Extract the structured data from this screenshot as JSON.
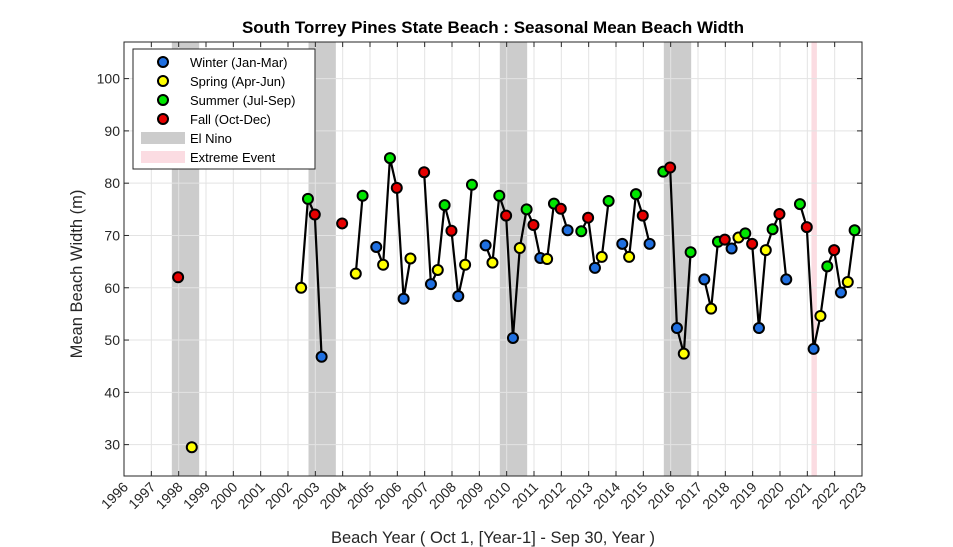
{
  "chart_data": {
    "type": "line",
    "title": "South Torrey Pines State Beach : Seasonal Mean Beach Width",
    "xlabel": "Beach Year ( Oct 1, [Year-1] - Sep 30, Year )",
    "ylabel": "Mean Beach Width (m)",
    "xlim": [
      1996,
      2023
    ],
    "ylim": [
      24,
      107
    ],
    "x_ticks": [
      "1996",
      "1997",
      "1998",
      "1999",
      "2000",
      "2001",
      "2002",
      "2003",
      "2004",
      "2005",
      "2006",
      "2007",
      "2008",
      "2009",
      "2010",
      "2011",
      "2012",
      "2013",
      "2014",
      "2015",
      "2016",
      "2017",
      "2018",
      "2019",
      "2020",
      "2021",
      "2022",
      "2023"
    ],
    "y_ticks": [
      "30",
      "40",
      "50",
      "60",
      "70",
      "80",
      "90",
      "100"
    ],
    "grid": true,
    "legend_position": "top-left",
    "season_colors": {
      "winter": "#1f6fe0",
      "spring": "#ffff00",
      "summer": "#00e600",
      "fall": "#e60000"
    },
    "legend": [
      {
        "key": "winter",
        "label": "Winter (Jan-Mar)",
        "kind": "marker"
      },
      {
        "key": "spring",
        "label": "Spring (Apr-Jun)",
        "kind": "marker"
      },
      {
        "key": "summer",
        "label": "Summer (Jul-Sep)",
        "kind": "marker"
      },
      {
        "key": "fall",
        "label": "Fall (Oct-Dec)",
        "kind": "marker"
      },
      {
        "key": "elnino",
        "label": "El Nino",
        "kind": "band"
      },
      {
        "key": "extreme",
        "label": "Extreme Event",
        "kind": "band"
      }
    ],
    "band_colors": {
      "elnino": "#cccccc",
      "extreme": "#fbdce2"
    },
    "shaded_periods": [
      {
        "type": "elnino",
        "start": 1997.75,
        "end": 1998.75
      },
      {
        "type": "elnino",
        "start": 2002.75,
        "end": 2003.75
      },
      {
        "type": "elnino",
        "start": 2009.75,
        "end": 2010.75
      },
      {
        "type": "elnino",
        "start": 2015.75,
        "end": 2016.75
      },
      {
        "type": "extreme",
        "start": 2021.15,
        "end": 2021.35
      }
    ],
    "segments": [
      [
        {
          "x": 1997.98,
          "y": 62.0,
          "season": "fall"
        }
      ],
      [
        {
          "x": 1998.48,
          "y": 29.5,
          "season": "spring"
        }
      ],
      [
        {
          "x": 2002.48,
          "y": 60.0,
          "season": "spring"
        },
        {
          "x": 2002.73,
          "y": 77.0,
          "season": "summer"
        },
        {
          "x": 2002.98,
          "y": 74.0,
          "season": "fall"
        },
        {
          "x": 2003.23,
          "y": 46.8,
          "season": "winter"
        }
      ],
      [
        {
          "x": 2003.98,
          "y": 72.3,
          "season": "fall"
        }
      ],
      [
        {
          "x": 2004.48,
          "y": 62.7,
          "season": "spring"
        },
        {
          "x": 2004.73,
          "y": 77.6,
          "season": "summer"
        }
      ],
      [
        {
          "x": 2005.23,
          "y": 67.8,
          "season": "winter"
        },
        {
          "x": 2005.48,
          "y": 64.4,
          "season": "spring"
        },
        {
          "x": 2005.73,
          "y": 84.8,
          "season": "summer"
        },
        {
          "x": 2005.98,
          "y": 79.1,
          "season": "fall"
        },
        {
          "x": 2006.23,
          "y": 57.9,
          "season": "winter"
        },
        {
          "x": 2006.48,
          "y": 65.6,
          "season": "spring"
        }
      ],
      [
        {
          "x": 2006.98,
          "y": 82.1,
          "season": "fall"
        },
        {
          "x": 2007.23,
          "y": 60.7,
          "season": "winter"
        },
        {
          "x": 2007.48,
          "y": 63.4,
          "season": "spring"
        },
        {
          "x": 2007.73,
          "y": 75.8,
          "season": "summer"
        },
        {
          "x": 2007.98,
          "y": 70.9,
          "season": "fall"
        },
        {
          "x": 2008.23,
          "y": 58.4,
          "season": "winter"
        },
        {
          "x": 2008.48,
          "y": 64.4,
          "season": "spring"
        },
        {
          "x": 2008.73,
          "y": 79.7,
          "season": "summer"
        }
      ],
      [
        {
          "x": 2009.23,
          "y": 68.1,
          "season": "winter"
        },
        {
          "x": 2009.48,
          "y": 64.8,
          "season": "spring"
        },
        {
          "x": 2009.73,
          "y": 77.6,
          "season": "summer"
        },
        {
          "x": 2009.98,
          "y": 73.8,
          "season": "fall"
        },
        {
          "x": 2010.23,
          "y": 50.4,
          "season": "winter"
        },
        {
          "x": 2010.48,
          "y": 67.6,
          "season": "spring"
        },
        {
          "x": 2010.73,
          "y": 75.0,
          "season": "summer"
        },
        {
          "x": 2010.98,
          "y": 72.0,
          "season": "fall"
        },
        {
          "x": 2011.23,
          "y": 65.7,
          "season": "winter"
        },
        {
          "x": 2011.48,
          "y": 65.5,
          "season": "spring"
        },
        {
          "x": 2011.73,
          "y": 76.1,
          "season": "summer"
        },
        {
          "x": 2011.98,
          "y": 75.1,
          "season": "fall"
        },
        {
          "x": 2012.23,
          "y": 71.0,
          "season": "winter"
        }
      ],
      [
        {
          "x": 2012.73,
          "y": 70.8,
          "season": "summer"
        },
        {
          "x": 2012.98,
          "y": 73.4,
          "season": "fall"
        },
        {
          "x": 2013.23,
          "y": 63.8,
          "season": "winter"
        },
        {
          "x": 2013.48,
          "y": 65.9,
          "season": "spring"
        },
        {
          "x": 2013.73,
          "y": 76.6,
          "season": "summer"
        }
      ],
      [
        {
          "x": 2014.23,
          "y": 68.4,
          "season": "winter"
        },
        {
          "x": 2014.48,
          "y": 65.9,
          "season": "spring"
        },
        {
          "x": 2014.73,
          "y": 77.9,
          "season": "summer"
        },
        {
          "x": 2014.98,
          "y": 73.8,
          "season": "fall"
        },
        {
          "x": 2015.23,
          "y": 68.4,
          "season": "winter"
        }
      ],
      [
        {
          "x": 2015.73,
          "y": 82.2,
          "season": "summer"
        },
        {
          "x": 2015.98,
          "y": 83.0,
          "season": "fall"
        },
        {
          "x": 2016.23,
          "y": 52.3,
          "season": "winter"
        },
        {
          "x": 2016.48,
          "y": 47.4,
          "season": "spring"
        },
        {
          "x": 2016.73,
          "y": 66.8,
          "season": "summer"
        }
      ],
      [
        {
          "x": 2017.23,
          "y": 61.6,
          "season": "winter"
        },
        {
          "x": 2017.48,
          "y": 56.0,
          "season": "spring"
        },
        {
          "x": 2017.73,
          "y": 68.8,
          "season": "summer"
        },
        {
          "x": 2017.98,
          "y": 69.2,
          "season": "fall"
        },
        {
          "x": 2018.23,
          "y": 67.5,
          "season": "winter"
        },
        {
          "x": 2018.48,
          "y": 69.6,
          "season": "spring"
        },
        {
          "x": 2018.73,
          "y": 70.4,
          "season": "summer"
        },
        {
          "x": 2018.98,
          "y": 68.4,
          "season": "fall"
        },
        {
          "x": 2019.23,
          "y": 52.3,
          "season": "winter"
        },
        {
          "x": 2019.48,
          "y": 67.2,
          "season": "spring"
        },
        {
          "x": 2019.73,
          "y": 71.2,
          "season": "summer"
        },
        {
          "x": 2019.98,
          "y": 74.1,
          "season": "fall"
        },
        {
          "x": 2020.23,
          "y": 61.6,
          "season": "winter"
        }
      ],
      [
        {
          "x": 2020.73,
          "y": 76.0,
          "season": "summer"
        },
        {
          "x": 2020.98,
          "y": 71.6,
          "season": "fall"
        },
        {
          "x": 2021.23,
          "y": 48.3,
          "season": "winter"
        },
        {
          "x": 2021.48,
          "y": 54.6,
          "season": "spring"
        },
        {
          "x": 2021.73,
          "y": 64.1,
          "season": "summer"
        },
        {
          "x": 2021.98,
          "y": 67.2,
          "season": "fall"
        },
        {
          "x": 2022.23,
          "y": 59.1,
          "season": "winter"
        },
        {
          "x": 2022.48,
          "y": 61.1,
          "season": "spring"
        },
        {
          "x": 2022.73,
          "y": 71.0,
          "season": "summer"
        }
      ]
    ]
  }
}
